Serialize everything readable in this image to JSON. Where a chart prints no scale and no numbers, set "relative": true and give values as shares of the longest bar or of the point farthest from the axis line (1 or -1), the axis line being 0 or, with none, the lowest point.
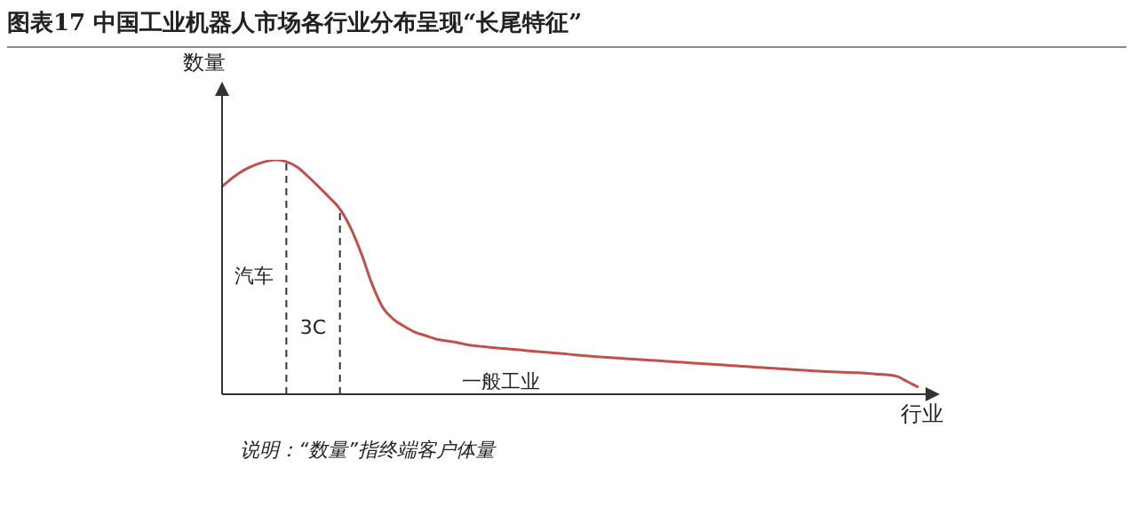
{
  "chart_data": {
    "type": "line",
    "title": "图表17 中国工业机器人市场各行业分布呈现“长尾特征”",
    "xlabel": "行业",
    "ylabel": "数量",
    "relative": true,
    "legend": false,
    "grid": false,
    "marker": "none",
    "categories": [
      null,
      null,
      null,
      null,
      null,
      null,
      null,
      null,
      null,
      null,
      null,
      null,
      null,
      null,
      null,
      null,
      null,
      null,
      null,
      null,
      null,
      null,
      null,
      null,
      null,
      null,
      null,
      null,
      null,
      null,
      null,
      null,
      null,
      null,
      null,
      null,
      null,
      null,
      null,
      null,
      null,
      null,
      null,
      null,
      null,
      null,
      null,
      null,
      null,
      null,
      null,
      null,
      null,
      null,
      null,
      null,
      null,
      null,
      null,
      null,
      null,
      null,
      null,
      null,
      null,
      null
    ],
    "series": [
      {
        "color": "#c0504d",
        "values": [
          0.886,
          0.924,
          0.955,
          0.977,
          0.992,
          1,
          0.992,
          0.97,
          0.93,
          0.886,
          0.84,
          0.79,
          0.71,
          0.6,
          0.47,
          0.37,
          0.32,
          0.29,
          0.265,
          0.25,
          0.235,
          0.227,
          0.22,
          0.21,
          0.205,
          0.2,
          0.196,
          0.192,
          0.188,
          0.184,
          0.18,
          0.176,
          0.172,
          0.168,
          0.164,
          0.16,
          0.157,
          0.154,
          0.151,
          0.148,
          0.145,
          0.142,
          0.139,
          0.136,
          0.133,
          0.13,
          0.127,
          0.124,
          0.121,
          0.118,
          0.115,
          0.112,
          0.109,
          0.106,
          0.103,
          0.1,
          0.098,
          0.096,
          0.094,
          0.092,
          0.09,
          0.086,
          0.083,
          0.076,
          0.053,
          0.03
        ]
      }
    ],
    "annotations": [
      "汽车",
      "3C",
      "一般工业",
      "说明：“数量”指终端客户体量"
    ]
  }
}
